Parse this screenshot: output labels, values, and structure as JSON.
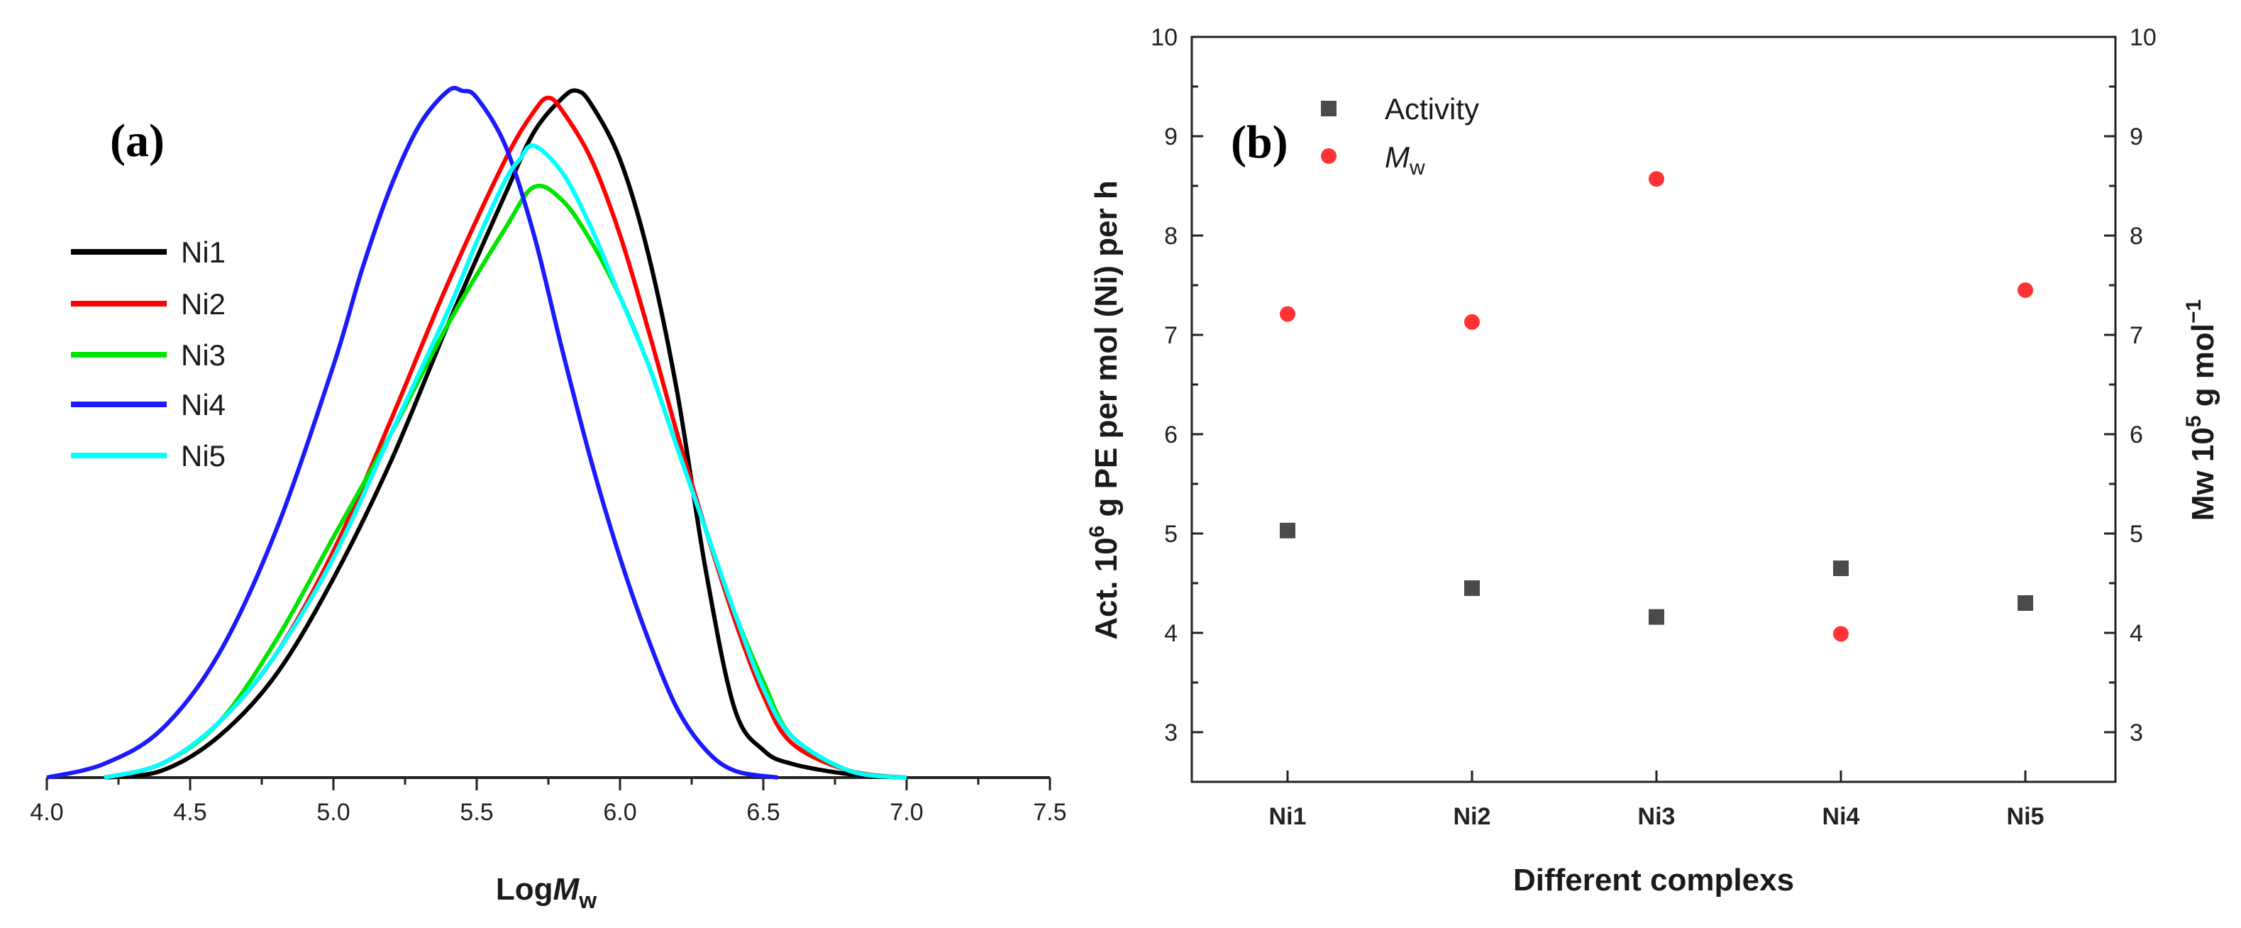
{
  "chart_data": [
    {
      "type": "line",
      "panel_label": "(a)",
      "xlabel": "LogM",
      "xlabel_main": "Log",
      "xlabel_ital": "M",
      "xlabel_sub": "w",
      "ylabel": "",
      "xlim": [
        4.0,
        7.5
      ],
      "ylim": [
        0,
        1.0
      ],
      "xticks": [
        "4.0",
        "4.5",
        "5.0",
        "5.5",
        "6.0",
        "6.5",
        "7.0",
        "7.5"
      ],
      "legend_position": "left",
      "series": [
        {
          "name": "Ni1",
          "color": "#000000",
          "x": [
            4.2,
            4.4,
            4.6,
            4.8,
            5.0,
            5.2,
            5.4,
            5.6,
            5.7,
            5.8,
            5.85,
            5.9,
            6.0,
            6.1,
            6.2,
            6.3,
            6.4,
            6.5,
            6.6,
            6.8,
            7.0
          ],
          "y": [
            0.0,
            0.01,
            0.06,
            0.15,
            0.29,
            0.46,
            0.66,
            0.85,
            0.94,
            0.99,
            1.0,
            0.98,
            0.9,
            0.76,
            0.56,
            0.3,
            0.1,
            0.04,
            0.02,
            0.005,
            0.0
          ]
        },
        {
          "name": "Ni2",
          "color": "#ff0000",
          "x": [
            4.2,
            4.4,
            4.6,
            4.8,
            5.0,
            5.2,
            5.4,
            5.6,
            5.7,
            5.75,
            5.8,
            5.9,
            6.0,
            6.1,
            6.2,
            6.3,
            6.4,
            6.5,
            6.6,
            6.8,
            7.0
          ],
          "y": [
            0.0,
            0.02,
            0.08,
            0.18,
            0.33,
            0.52,
            0.72,
            0.9,
            0.97,
            0.99,
            0.97,
            0.9,
            0.79,
            0.65,
            0.5,
            0.36,
            0.23,
            0.12,
            0.05,
            0.01,
            0.0
          ]
        },
        {
          "name": "Ni3",
          "color": "#00e400",
          "x": [
            4.2,
            4.4,
            4.6,
            4.8,
            5.0,
            5.2,
            5.4,
            5.6,
            5.7,
            5.8,
            5.9,
            6.0,
            6.1,
            6.2,
            6.3,
            6.4,
            6.5,
            6.6,
            6.8,
            7.0
          ],
          "y": [
            0.0,
            0.02,
            0.08,
            0.2,
            0.35,
            0.5,
            0.66,
            0.8,
            0.86,
            0.84,
            0.78,
            0.7,
            0.6,
            0.48,
            0.36,
            0.24,
            0.14,
            0.06,
            0.01,
            0.0
          ]
        },
        {
          "name": "Ni4",
          "color": "#1a1aff",
          "x": [
            4.0,
            4.2,
            4.4,
            4.6,
            4.8,
            5.0,
            5.1,
            5.2,
            5.3,
            5.4,
            5.45,
            5.5,
            5.6,
            5.7,
            5.8,
            5.9,
            6.0,
            6.1,
            6.2,
            6.3,
            6.4,
            6.55
          ],
          "y": [
            0.0,
            0.02,
            0.07,
            0.18,
            0.36,
            0.6,
            0.74,
            0.86,
            0.95,
            1.0,
            1.0,
            0.99,
            0.92,
            0.79,
            0.62,
            0.46,
            0.32,
            0.2,
            0.1,
            0.04,
            0.01,
            0.0
          ]
        },
        {
          "name": "Ni5",
          "color": "#00ffff",
          "x": [
            4.2,
            4.4,
            4.6,
            4.8,
            5.0,
            5.2,
            5.4,
            5.5,
            5.6,
            5.65,
            5.7,
            5.8,
            5.9,
            6.0,
            6.1,
            6.2,
            6.3,
            6.4,
            6.5,
            6.6,
            6.8,
            7.0
          ],
          "y": [
            0.0,
            0.02,
            0.08,
            0.18,
            0.32,
            0.5,
            0.68,
            0.78,
            0.87,
            0.9,
            0.92,
            0.88,
            0.8,
            0.7,
            0.6,
            0.48,
            0.36,
            0.24,
            0.13,
            0.06,
            0.01,
            0.0
          ]
        }
      ]
    },
    {
      "type": "scatter",
      "panel_label": "(b)",
      "xlabel": "Different complexs",
      "ylabel_left": "Act. 10^6 g PE per mol (Ni) per h",
      "ylabel_left_parts": [
        "Act. 10",
        "6",
        " g PE per mol (Ni) per h"
      ],
      "ylabel_right": "Mw 10^5 g mol^-1",
      "ylabel_right_parts": [
        "Mw 10",
        "5",
        " g mol",
        "−1"
      ],
      "categories": [
        "Ni1",
        "Ni2",
        "Ni3",
        "Ni4",
        "Ni5"
      ],
      "ylim": [
        2.5,
        10
      ],
      "yticks": [
        "3",
        "4",
        "5",
        "6",
        "7",
        "8",
        "9",
        "10"
      ],
      "legend_position": "top-left",
      "series": [
        {
          "name": "Activity",
          "marker": "square",
          "color": "#4a4a4a",
          "values": [
            5.03,
            4.45,
            4.16,
            4.65,
            4.3
          ]
        },
        {
          "name": "Mw",
          "name_main": "M",
          "name_sub": "w",
          "marker": "circle",
          "color": "#ff3333",
          "values": [
            7.21,
            7.13,
            8.57,
            3.99,
            7.45
          ]
        }
      ]
    }
  ]
}
